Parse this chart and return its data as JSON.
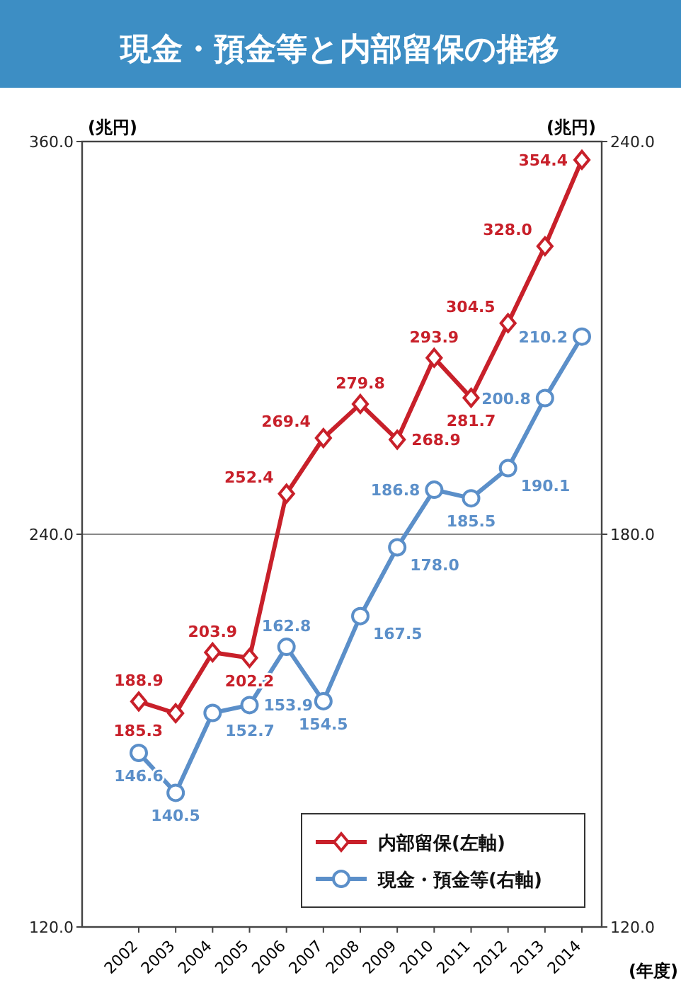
{
  "chart_data": {
    "type": "line",
    "title": "現金・預金等と内部留保の推移",
    "ylabel": "(兆円)",
    "y2label": "(兆円)",
    "xlabel": "(年度)",
    "categories": [
      "2002",
      "2003",
      "2004",
      "2005",
      "2006",
      "2007",
      "2008",
      "2009",
      "2010",
      "2011",
      "2012",
      "2013",
      "2014"
    ],
    "ylim": [
      120,
      360
    ],
    "yticks": [
      {
        "value": 120,
        "label": "120.0"
      },
      {
        "value": 240,
        "label": "240.0"
      },
      {
        "value": 360,
        "label": "360.0"
      }
    ],
    "y2lim": [
      120,
      240
    ],
    "y2ticks": [
      {
        "value": 120,
        "label": "120.0"
      },
      {
        "value": 180,
        "label": "180.0"
      },
      {
        "value": 240,
        "label": "240.0"
      }
    ],
    "grid": "y",
    "legend": "bottom right",
    "line_style": "solid",
    "series": [
      {
        "name": "内部留保(左軸)",
        "color": "#c8202a",
        "marker": "diamond",
        "values": [
          188.9,
          185.3,
          203.9,
          202.2,
          252.4,
          269.4,
          279.8,
          268.9,
          293.9,
          281.7,
          304.5,
          328.0,
          354.4
        ],
        "value_labels": [
          "188.9",
          "185.3",
          "203.9",
          "202.2",
          "252.4",
          "269.4",
          "279.8",
          "268.9",
          "293.9",
          "281.7",
          "304.5",
          "328.0",
          "354.4"
        ]
      },
      {
        "name": "現金・預金等(右軸)",
        "color": "#5b8fc9",
        "marker": "circle",
        "axis": "y2",
        "values": [
          146.6,
          140.5,
          152.7,
          153.9,
          162.8,
          154.5,
          167.5,
          178.0,
          186.8,
          185.5,
          190.1,
          200.8,
          210.2
        ],
        "value_labels": [
          "146.6",
          "140.5",
          "152.7",
          "153.9",
          "162.8",
          "154.5",
          "167.5",
          "178.0",
          "186.8",
          "185.5",
          "190.1",
          "200.8",
          "210.2"
        ]
      }
    ]
  }
}
